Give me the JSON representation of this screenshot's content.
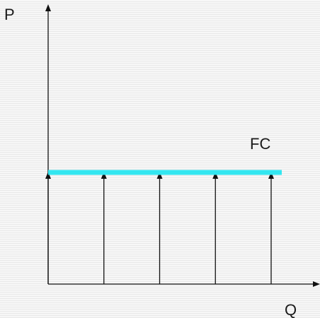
{
  "labels": {
    "y_axis": "P",
    "x_axis": "Q",
    "curve": "FC"
  },
  "colors": {
    "axis": "#111111",
    "fc_line": "#33e6f0",
    "arrow": "#111111"
  },
  "arrows": {
    "count": 5
  }
}
